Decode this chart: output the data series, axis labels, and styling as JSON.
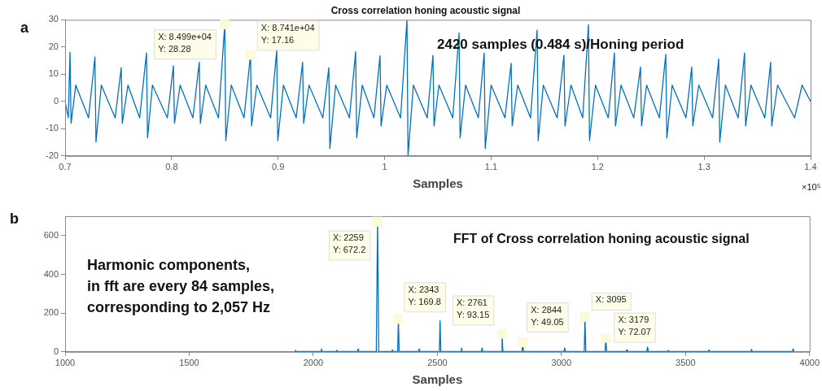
{
  "chart_data": [
    {
      "type": "line",
      "title": "Cross correlation honing acoustic signal",
      "xlabel": "Samples",
      "marker": "none",
      "xlim": [
        0.7,
        1.4
      ],
      "xticks": [
        0.7,
        0.8,
        0.9,
        1,
        1.1,
        1.2,
        1.3,
        1.4
      ],
      "ylim": [
        -20,
        30
      ],
      "yticks": [
        -20,
        -10,
        0,
        10,
        20,
        30
      ],
      "series": [
        {
          "color": "#0072bd",
          "x": [
            0.7,
            0.703,
            0.7046,
            0.7056,
            0.71,
            0.722,
            0.728,
            0.729,
            0.734,
            0.747,
            0.7527,
            0.7537,
            0.759,
            0.77,
            0.7764,
            0.7774,
            0.782,
            0.796,
            0.8017,
            0.8027,
            0.808,
            0.82,
            0.826,
            0.827,
            0.832,
            0.844,
            0.8499,
            0.8509,
            0.856,
            0.868,
            0.8741,
            0.8751,
            0.88,
            0.893,
            0.8987,
            0.8997,
            0.905,
            0.917,
            0.923,
            0.924,
            0.929,
            0.942,
            0.9476,
            0.9486,
            0.954,
            0.967,
            0.9728,
            0.9738,
            0.979,
            0.99,
            0.9957,
            0.9967,
            1.002,
            1.015,
            1.021,
            1.022,
            1.027,
            1.04,
            1.0454,
            1.0464,
            1.051,
            1.064,
            1.0699,
            1.0709,
            1.076,
            1.088,
            1.0935,
            1.0945,
            1.1,
            1.113,
            1.1188,
            1.1198,
            1.125,
            1.137,
            1.1432,
            1.1442,
            1.149,
            1.162,
            1.1684,
            1.1694,
            1.175,
            1.186,
            1.1914,
            1.1924,
            1.198,
            1.21,
            1.2158,
            1.2168,
            1.222,
            1.234,
            1.2403,
            1.2413,
            1.246,
            1.258,
            1.264,
            1.265,
            1.27,
            1.283,
            1.2884,
            1.2894,
            1.295,
            1.308,
            1.3137,
            1.3147,
            1.32,
            1.332,
            1.338,
            1.339,
            1.344,
            1.357,
            1.3625,
            1.3635,
            1.369,
            1.385,
            1.392,
            1.4
          ],
          "values": [
            0,
            -6,
            18.1,
            -8,
            6,
            -6,
            16.3,
            -14.9,
            6,
            -6,
            12.4,
            -8,
            6,
            -6,
            17.8,
            -13.4,
            6,
            -6,
            13.1,
            -8,
            6,
            -6,
            14.4,
            -8,
            6,
            -6,
            28.28,
            -14.4,
            6,
            -6,
            17.16,
            -9,
            6,
            -6,
            18.8,
            -14.4,
            6,
            -6,
            14.4,
            -8,
            6,
            -6,
            12.4,
            -17.3,
            6,
            -6,
            18.3,
            -13.4,
            6,
            -6,
            16.8,
            -9,
            6,
            -6,
            30,
            -20,
            6,
            -6,
            16.9,
            -9,
            6,
            -6,
            25.2,
            -13.4,
            6,
            -6,
            17.8,
            -17.3,
            6,
            -6,
            14,
            -9,
            6,
            -6,
            26.2,
            -14.4,
            6,
            -6,
            17,
            -9,
            6,
            -6,
            28.2,
            -14.4,
            6,
            -6,
            17.8,
            -9,
            6,
            -6,
            12.7,
            -9,
            6,
            -6,
            17.3,
            -13.4,
            6,
            -6,
            12.7,
            -9,
            6,
            -6,
            15.6,
            -14.9,
            6,
            -6,
            17.8,
            -9,
            6,
            -6,
            14.4,
            -9,
            6,
            -6,
            6,
            0
          ]
        }
      ],
      "annotations": [
        "a",
        "×10⁵",
        "2420 samples (0.484 s)/Honing period",
        {
          "text": "X: 8.499e+04\nY: 28.28",
          "x": 0.8499,
          "y": 28.28
        },
        {
          "text": "X: 8.741e+04\nY: 17.16",
          "x": 0.8741,
          "y": 17.16
        }
      ]
    },
    {
      "type": "line",
      "xlabel": "Samples",
      "marker": "none",
      "xlim": [
        1000,
        4000
      ],
      "xticks": [
        1000,
        1500,
        2000,
        2500,
        3000,
        3500,
        4000
      ],
      "ylim": [
        0,
        700
      ],
      "yticks": [
        0,
        200,
        400,
        600
      ],
      "series": [
        {
          "color": "#0072bd",
          "x": [
            1925,
            1928,
            1931,
            2030,
            2033,
            2036,
            2092,
            2095,
            2098,
            2178,
            2181,
            2184,
            2254,
            2259,
            2264,
            2316,
            2319,
            2322,
            2340,
            2343,
            2346,
            2424,
            2427,
            2430,
            2508,
            2511,
            2514,
            2594,
            2597,
            2600,
            2677,
            2680,
            2683,
            2758,
            2761,
            2764,
            2841,
            2844,
            2847,
            3010,
            3013,
            3016,
            3092,
            3095,
            3098,
            3176,
            3179,
            3182,
            3260,
            3263,
            3266,
            3344,
            3347,
            3350,
            3427,
            3430,
            3433,
            3592,
            3595,
            3598,
            3763,
            3766,
            3769,
            3931,
            3934,
            3937
          ],
          "values": [
            2,
            8,
            2,
            2,
            15,
            2,
            2,
            8,
            2,
            2,
            15,
            2,
            2,
            672.2,
            2,
            2,
            10,
            2,
            2,
            169.8,
            2,
            2,
            15,
            2,
            2,
            160,
            2,
            2,
            20,
            2,
            2,
            20,
            2,
            2,
            93.15,
            2,
            2,
            49.05,
            2,
            2,
            20,
            2,
            2,
            180,
            2,
            2,
            72.07,
            2,
            2,
            10,
            2,
            2,
            25,
            2,
            2,
            8,
            2,
            2,
            10,
            2,
            2,
            12,
            2,
            2,
            15,
            2
          ]
        }
      ],
      "annotations": [
        "b",
        "Harmonic components,\nin fft are every 84 samples,\ncorresponding to 2,057 Hz",
        "FFT of Cross correlation honing acoustic signal",
        {
          "text": "X: 2259\nY: 672.2",
          "x": 2259,
          "y": 672.2
        },
        {
          "text": "X: 2343\nY: 169.8",
          "x": 2343,
          "y": 169.8
        },
        {
          "text": "X: 2761\nY: 93.15",
          "x": 2761,
          "y": 93.15
        },
        {
          "text": "X: 2844\nY: 49.05",
          "x": 2844,
          "y": 49.05
        },
        {
          "text": "X: 3095",
          "x": 3095,
          "y": 180
        },
        {
          "text": "X: 3179\nY: 72.07",
          "x": 3179,
          "y": 72.07
        }
      ]
    }
  ]
}
